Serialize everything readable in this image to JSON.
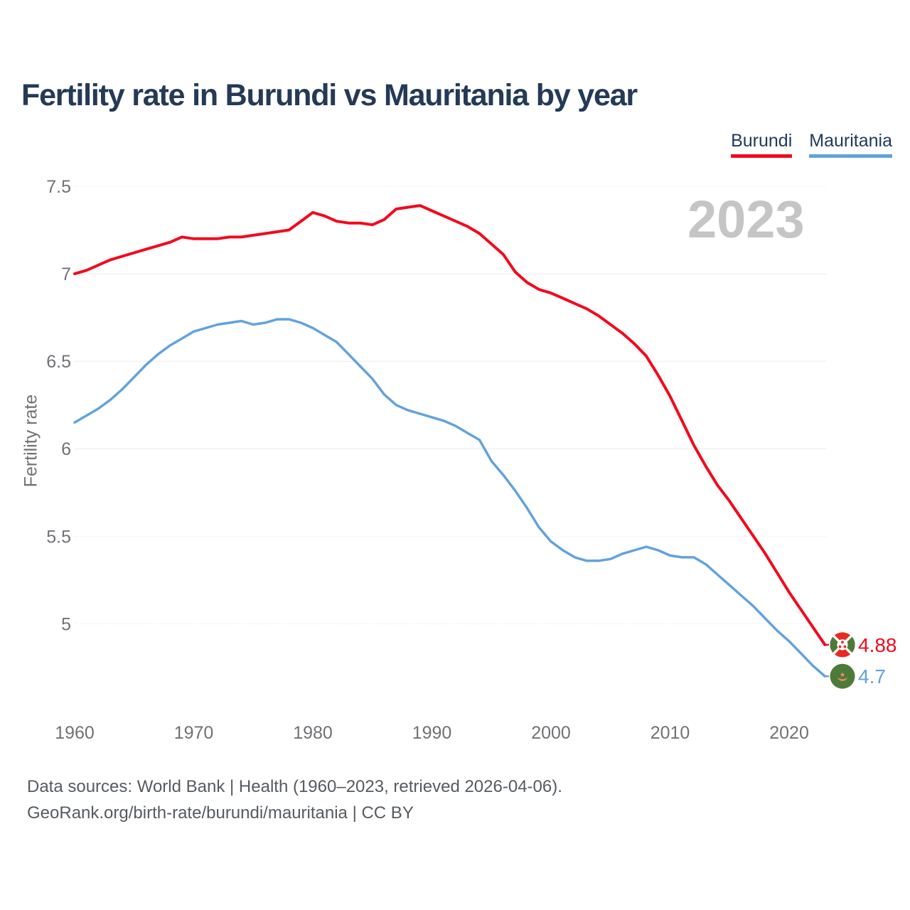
{
  "title": "Fertility rate in Burundi vs Mauritania by year",
  "watermark": "2023",
  "legend": [
    {
      "label": "Burundi",
      "color": "#f3091d"
    },
    {
      "label": "Mauritania",
      "color": "#63a2de"
    }
  ],
  "footer": {
    "line1": "Data sources: World Bank | Health (1960–2023, retrieved 2026-04-06).",
    "line2": "GeoRank.org/birth-rate/burundi/mauritania | CC BY"
  },
  "colors": {
    "burundi_line": "#f3091d",
    "mauritania_line": "#63a2de",
    "title_text": "#243a56",
    "axis_text": "#6f7275",
    "watermark_text": "#c5c5c5",
    "gridline_solid": "#ececec",
    "gridline_dotted": "#dcdcdc",
    "flag_green": "#4e7a38",
    "flag_red": "#e82a23",
    "flag_salmon": "#ee8a76"
  },
  "chart_data": {
    "type": "line",
    "title": "Fertility rate in Burundi vs Mauritania by year",
    "xlabel": "",
    "ylabel": "Fertility rate",
    "xlim": [
      1960,
      2023
    ],
    "ylim": [
      4.6,
      7.5
    ],
    "grid": "horizontal",
    "legend_position": "top-right",
    "x": [
      1960,
      1961,
      1962,
      1963,
      1964,
      1965,
      1966,
      1967,
      1968,
      1969,
      1970,
      1971,
      1972,
      1973,
      1974,
      1975,
      1976,
      1977,
      1978,
      1979,
      1980,
      1981,
      1982,
      1983,
      1984,
      1985,
      1986,
      1987,
      1988,
      1989,
      1990,
      1991,
      1992,
      1993,
      1994,
      1995,
      1996,
      1997,
      1998,
      1999,
      2000,
      2001,
      2002,
      2003,
      2004,
      2005,
      2006,
      2007,
      2008,
      2009,
      2010,
      2011,
      2012,
      2013,
      2014,
      2015,
      2016,
      2017,
      2018,
      2019,
      2020,
      2021,
      2022,
      2023
    ],
    "series": [
      {
        "name": "Burundi",
        "color": "#f3091d",
        "end_label": "4.88",
        "values": [
          7.0,
          7.02,
          7.05,
          7.08,
          7.1,
          7.12,
          7.14,
          7.16,
          7.18,
          7.21,
          7.2,
          7.2,
          7.2,
          7.21,
          7.21,
          7.22,
          7.23,
          7.24,
          7.25,
          7.3,
          7.35,
          7.33,
          7.3,
          7.29,
          7.29,
          7.28,
          7.31,
          7.37,
          7.38,
          7.39,
          7.36,
          7.33,
          7.3,
          7.27,
          7.23,
          7.17,
          7.11,
          7.01,
          6.95,
          6.91,
          6.89,
          6.86,
          6.83,
          6.8,
          6.76,
          6.71,
          6.66,
          6.6,
          6.53,
          6.42,
          6.3,
          6.16,
          6.02,
          5.9,
          5.79,
          5.7,
          5.6,
          5.5,
          5.4,
          5.29,
          5.18,
          5.08,
          4.98,
          4.88
        ]
      },
      {
        "name": "Mauritania",
        "color": "#63a2de",
        "end_label": "4.7",
        "values": [
          6.15,
          6.19,
          6.23,
          6.28,
          6.34,
          6.41,
          6.48,
          6.54,
          6.59,
          6.63,
          6.67,
          6.69,
          6.71,
          6.72,
          6.73,
          6.71,
          6.72,
          6.74,
          6.74,
          6.72,
          6.69,
          6.65,
          6.61,
          6.54,
          6.47,
          6.4,
          6.31,
          6.25,
          6.22,
          6.2,
          6.18,
          6.16,
          6.13,
          6.09,
          6.05,
          5.93,
          5.85,
          5.76,
          5.66,
          5.55,
          5.47,
          5.42,
          5.38,
          5.36,
          5.36,
          5.37,
          5.4,
          5.42,
          5.44,
          5.42,
          5.39,
          5.38,
          5.38,
          5.34,
          5.28,
          5.22,
          5.16,
          5.1,
          5.03,
          4.96,
          4.9,
          4.83,
          4.76,
          4.7
        ]
      }
    ],
    "yticks": {
      "values": [
        7.5,
        7,
        6.5,
        6,
        5.5,
        5
      ],
      "labels": [
        "7.5",
        "7",
        "6.5",
        "6",
        "5.5",
        "5"
      ]
    },
    "xticks": {
      "values": [
        1960,
        1970,
        1980,
        1990,
        2000,
        2010,
        2020
      ],
      "labels": [
        "1960",
        "1970",
        "1980",
        "1990",
        "2000",
        "2010",
        "2020"
      ]
    }
  },
  "end_labels": [
    {
      "series": "Burundi",
      "value": "4.88",
      "flag": "burundi-flag-icon"
    },
    {
      "series": "Mauritania",
      "value": "4.7",
      "flag": "mauritania-flag-icon"
    }
  ]
}
